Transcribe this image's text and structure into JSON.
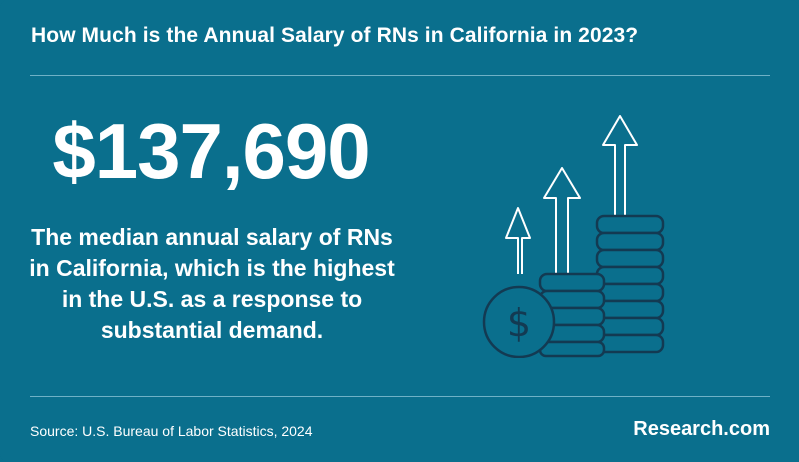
{
  "header": {
    "title": "How Much is the Annual Salary of RNs in California in 2023?"
  },
  "stat": {
    "value": "$137,690",
    "description": "The median annual salary of RNs in California, which is the highest in the U.S. as a response to substantial demand."
  },
  "footer": {
    "source": "Source: U.S. Bureau of Labor Statistics, 2024",
    "brand": "Research.com"
  },
  "colors": {
    "background": "#0a6f8d",
    "text": "#ffffff",
    "icon_stroke": "#133a52",
    "rule": "#6fb1c6"
  },
  "icons": [
    "dollar-coin-icon",
    "coin-stack-icon",
    "up-arrow-icon"
  ]
}
